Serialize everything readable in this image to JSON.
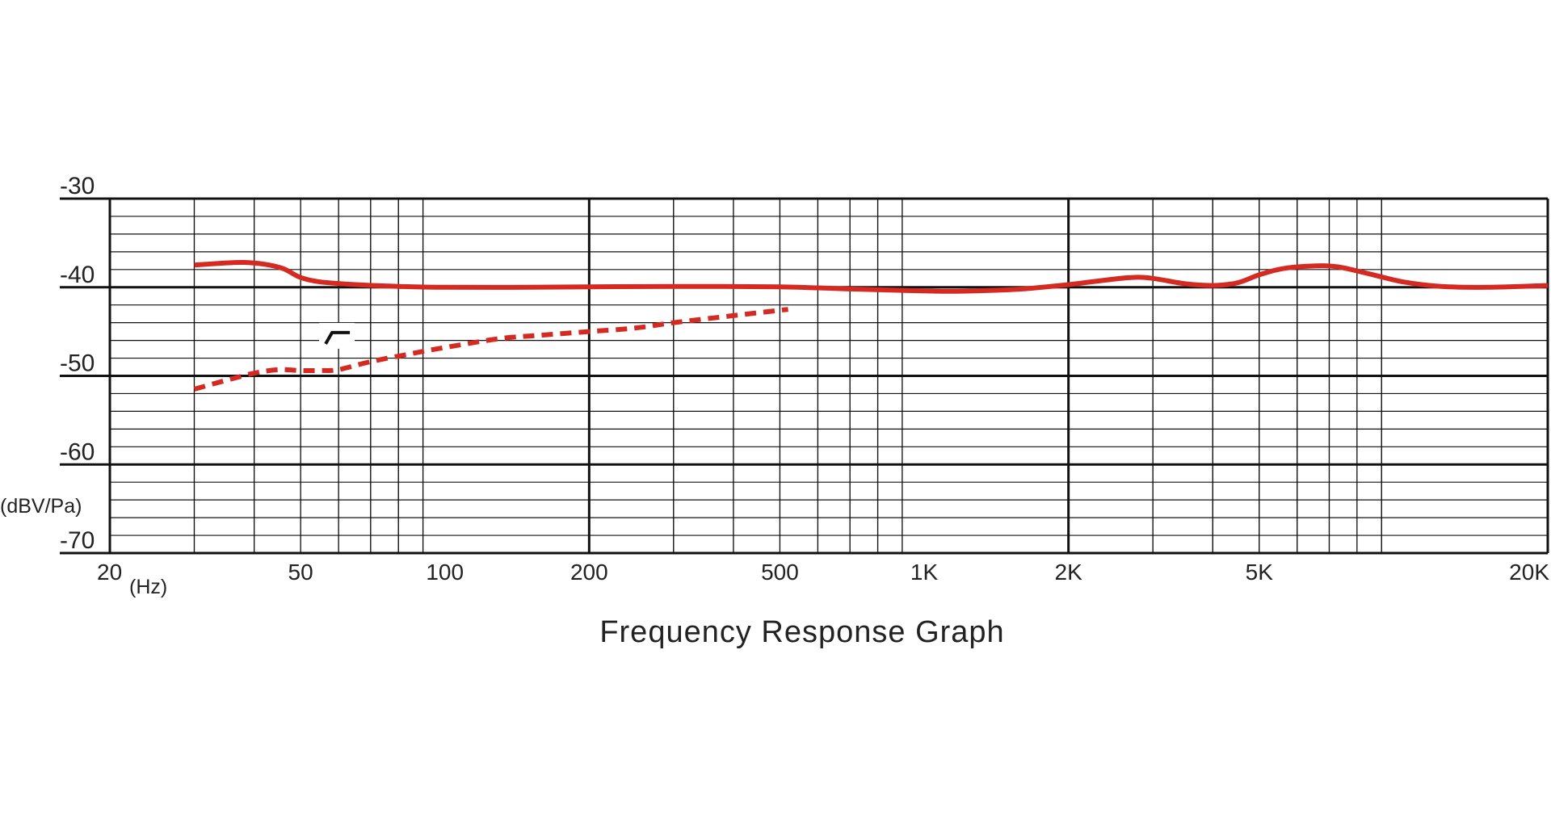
{
  "chart_data": {
    "type": "line",
    "title": "Frequency Response Graph",
    "xlabel": "(Hz)",
    "ylabel": "(dBV/Pa)",
    "x_scale": "log",
    "xlim": [
      20,
      20000
    ],
    "ylim": [
      -70,
      -30
    ],
    "grid": true,
    "x_ticks": [
      {
        "value": 20,
        "label": "20"
      },
      {
        "value": 50,
        "label": "50"
      },
      {
        "value": 100,
        "label": "100"
      },
      {
        "value": 200,
        "label": "200"
      },
      {
        "value": 500,
        "label": "500"
      },
      {
        "value": 1000,
        "label": "1K"
      },
      {
        "value": 2000,
        "label": "2K"
      },
      {
        "value": 5000,
        "label": "5K"
      },
      {
        "value": 20000,
        "label": "20K"
      }
    ],
    "y_ticks": [
      {
        "value": -30,
        "label": "-30"
      },
      {
        "value": -40,
        "label": "-40"
      },
      {
        "value": -50,
        "label": "-50"
      },
      {
        "value": -60,
        "label": "-60"
      },
      {
        "value": -70,
        "label": "-70"
      }
    ],
    "series": [
      {
        "style": "solid",
        "color": "#d42a22",
        "points": [
          [
            30,
            -37.5
          ],
          [
            34,
            -37.3
          ],
          [
            38,
            -37.2
          ],
          [
            42,
            -37.4
          ],
          [
            46,
            -37.9
          ],
          [
            50,
            -38.9
          ],
          [
            55,
            -39.4
          ],
          [
            65,
            -39.7
          ],
          [
            80,
            -39.9
          ],
          [
            100,
            -40.0
          ],
          [
            150,
            -40.0
          ],
          [
            200,
            -39.95
          ],
          [
            300,
            -39.9
          ],
          [
            500,
            -39.95
          ],
          [
            700,
            -40.2
          ],
          [
            900,
            -40.35
          ],
          [
            1100,
            -40.45
          ],
          [
            1300,
            -40.4
          ],
          [
            1600,
            -40.2
          ],
          [
            2000,
            -39.7
          ],
          [
            2300,
            -39.3
          ],
          [
            2700,
            -38.9
          ],
          [
            3000,
            -39.0
          ],
          [
            3500,
            -39.6
          ],
          [
            4000,
            -39.8
          ],
          [
            4500,
            -39.5
          ],
          [
            5000,
            -38.6
          ],
          [
            5600,
            -37.9
          ],
          [
            6500,
            -37.6
          ],
          [
            7300,
            -37.7
          ],
          [
            8500,
            -38.5
          ],
          [
            10000,
            -39.4
          ],
          [
            12000,
            -39.9
          ],
          [
            15000,
            -40.0
          ],
          [
            20000,
            -39.8
          ]
        ]
      },
      {
        "style": "dashed",
        "color": "#d42a22",
        "points": [
          [
            30,
            -51.5
          ],
          [
            35,
            -50.5
          ],
          [
            40,
            -49.7
          ],
          [
            45,
            -49.3
          ],
          [
            50,
            -49.4
          ],
          [
            55,
            -49.4
          ],
          [
            60,
            -49.3
          ],
          [
            70,
            -48.4
          ],
          [
            85,
            -47.5
          ],
          [
            100,
            -46.8
          ],
          [
            130,
            -45.8
          ],
          [
            160,
            -45.4
          ],
          [
            200,
            -45.0
          ],
          [
            250,
            -44.6
          ],
          [
            300,
            -44.0
          ],
          [
            400,
            -43.2
          ],
          [
            500,
            -42.6
          ],
          [
            520,
            -42.5
          ]
        ]
      }
    ],
    "annotations": [
      {
        "type": "low-cut-switch-symbol",
        "x": 60,
        "y": -45.3
      }
    ]
  }
}
